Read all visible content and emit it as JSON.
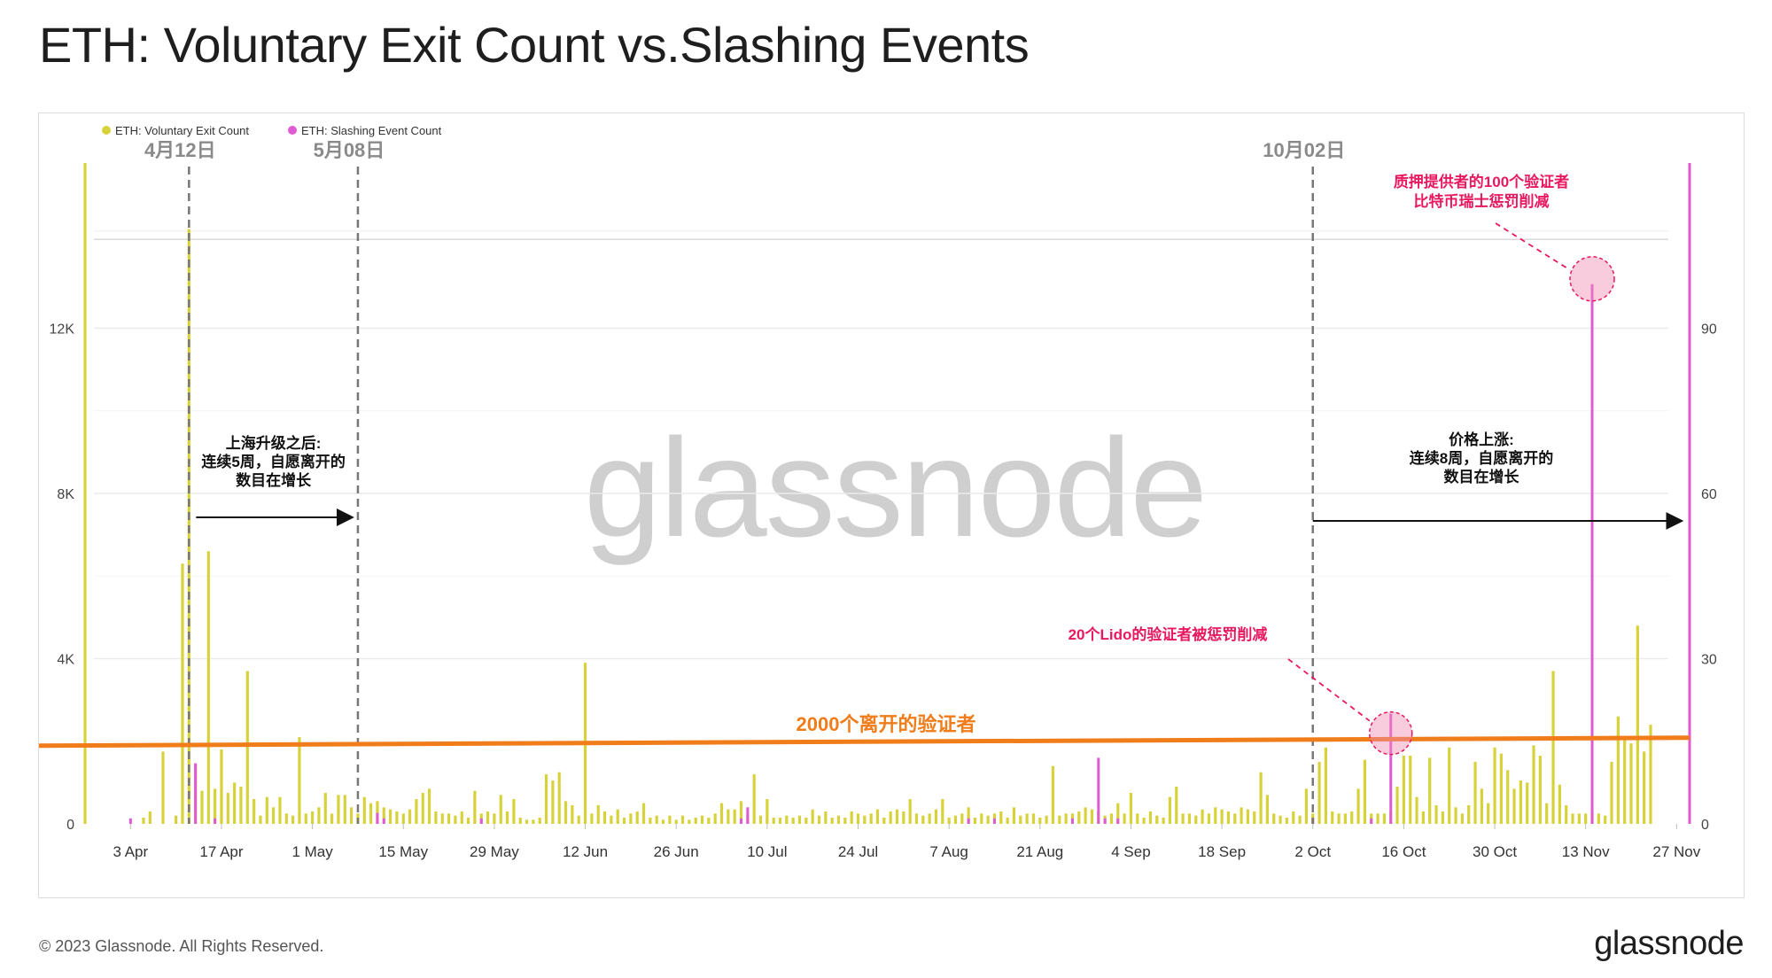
{
  "title": "ETH: Voluntary Exit Count vs.Slashing Events",
  "footer": {
    "copyright": "© 2023 Glassnode. All Rights Reserved.",
    "logo": "glassnode"
  },
  "watermark": "glassnode",
  "colors": {
    "exits": "#d8d23a",
    "slashing": "#e05ad4",
    "threshold": "#f07c1a",
    "annotation_red": "#e8185e",
    "marker": "#777777"
  },
  "chart_data": {
    "type": "bar",
    "legend": [
      {
        "name": "ETH: Voluntary Exit Count",
        "color": "#d8d23a"
      },
      {
        "name": "ETH: Slashing Event Count",
        "color": "#e05ad4"
      }
    ],
    "legend_position": "top-left",
    "x_start": "2023-03-27",
    "x_end": "2023-11-29",
    "x_ticks": [
      "3 Apr",
      "17 Apr",
      "1 May",
      "15 May",
      "29 May",
      "12 Jun",
      "26 Jun",
      "10 Jul",
      "24 Jul",
      "7 Aug",
      "21 Aug",
      "4 Sep",
      "18 Sep",
      "2 Oct",
      "16 Oct",
      "30 Oct",
      "13 Nov",
      "27 Nov"
    ],
    "x_tick_dates": [
      "2023-04-03",
      "2023-04-17",
      "2023-05-01",
      "2023-05-15",
      "2023-05-29",
      "2023-06-12",
      "2023-06-26",
      "2023-07-10",
      "2023-07-24",
      "2023-08-07",
      "2023-08-21",
      "2023-09-04",
      "2023-09-18",
      "2023-10-02",
      "2023-10-16",
      "2023-10-30",
      "2023-11-13",
      "2023-11-27"
    ],
    "y_left": {
      "ticks": [
        "0",
        "4K",
        "8K",
        "12K"
      ],
      "values": [
        0,
        4000,
        8000,
        12000
      ],
      "range": [
        0,
        16000
      ]
    },
    "y_right": {
      "ticks": [
        "0",
        "30",
        "60",
        "90"
      ],
      "values": [
        0,
        30,
        60,
        90
      ],
      "range": [
        0,
        120
      ]
    },
    "grid": true,
    "series": [
      {
        "name": "ETH: Voluntary Exit Count",
        "axis": "left",
        "points": [
          [
            "2023-03-27",
            16000
          ],
          [
            "2023-04-05",
            150
          ],
          [
            "2023-04-06",
            300
          ],
          [
            "2023-04-08",
            1750
          ],
          [
            "2023-04-10",
            200
          ],
          [
            "2023-04-11",
            6300
          ],
          [
            "2023-04-12",
            14400
          ],
          [
            "2023-04-13",
            1450
          ],
          [
            "2023-04-14",
            800
          ],
          [
            "2023-04-15",
            6600
          ],
          [
            "2023-04-16",
            850
          ],
          [
            "2023-04-17",
            1800
          ],
          [
            "2023-04-18",
            750
          ],
          [
            "2023-04-19",
            1000
          ],
          [
            "2023-04-20",
            900
          ],
          [
            "2023-04-21",
            3700
          ],
          [
            "2023-04-22",
            600
          ],
          [
            "2023-04-23",
            200
          ],
          [
            "2023-04-24",
            650
          ],
          [
            "2023-04-25",
            400
          ],
          [
            "2023-04-26",
            650
          ],
          [
            "2023-04-27",
            250
          ],
          [
            "2023-04-28",
            200
          ],
          [
            "2023-04-29",
            2100
          ],
          [
            "2023-04-30",
            250
          ],
          [
            "2023-05-01",
            300
          ],
          [
            "2023-05-02",
            400
          ],
          [
            "2023-05-03",
            750
          ],
          [
            "2023-05-04",
            250
          ],
          [
            "2023-05-05",
            700
          ],
          [
            "2023-05-06",
            700
          ],
          [
            "2023-05-07",
            400
          ],
          [
            "2023-05-08",
            250
          ],
          [
            "2023-05-09",
            650
          ],
          [
            "2023-05-10",
            500
          ],
          [
            "2023-05-11",
            550
          ],
          [
            "2023-05-12",
            400
          ],
          [
            "2023-05-13",
            350
          ],
          [
            "2023-05-14",
            300
          ],
          [
            "2023-05-15",
            250
          ],
          [
            "2023-05-16",
            350
          ],
          [
            "2023-05-17",
            600
          ],
          [
            "2023-05-18",
            750
          ],
          [
            "2023-05-19",
            850
          ],
          [
            "2023-05-20",
            300
          ],
          [
            "2023-05-21",
            250
          ],
          [
            "2023-05-22",
            250
          ],
          [
            "2023-05-23",
            200
          ],
          [
            "2023-05-24",
            300
          ],
          [
            "2023-05-25",
            150
          ],
          [
            "2023-05-26",
            800
          ],
          [
            "2023-05-27",
            250
          ],
          [
            "2023-05-28",
            300
          ],
          [
            "2023-05-29",
            250
          ],
          [
            "2023-05-30",
            700
          ],
          [
            "2023-05-31",
            300
          ],
          [
            "2023-06-01",
            600
          ],
          [
            "2023-06-02",
            150
          ],
          [
            "2023-06-03",
            100
          ],
          [
            "2023-06-04",
            100
          ],
          [
            "2023-06-05",
            150
          ],
          [
            "2023-06-06",
            1200
          ],
          [
            "2023-06-07",
            1050
          ],
          [
            "2023-06-08",
            1250
          ],
          [
            "2023-06-09",
            550
          ],
          [
            "2023-06-10",
            450
          ],
          [
            "2023-06-11",
            200
          ],
          [
            "2023-06-12",
            3900
          ],
          [
            "2023-06-13",
            250
          ],
          [
            "2023-06-14",
            450
          ],
          [
            "2023-06-15",
            300
          ],
          [
            "2023-06-16",
            200
          ],
          [
            "2023-06-17",
            350
          ],
          [
            "2023-06-18",
            150
          ],
          [
            "2023-06-19",
            250
          ],
          [
            "2023-06-20",
            300
          ],
          [
            "2023-06-21",
            500
          ],
          [
            "2023-06-22",
            150
          ],
          [
            "2023-06-23",
            200
          ],
          [
            "2023-06-24",
            100
          ],
          [
            "2023-06-25",
            200
          ],
          [
            "2023-06-26",
            100
          ],
          [
            "2023-06-27",
            200
          ],
          [
            "2023-06-28",
            100
          ],
          [
            "2023-06-29",
            150
          ],
          [
            "2023-06-30",
            200
          ],
          [
            "2023-07-01",
            150
          ],
          [
            "2023-07-02",
            250
          ],
          [
            "2023-07-03",
            500
          ],
          [
            "2023-07-04",
            350
          ],
          [
            "2023-07-05",
            350
          ],
          [
            "2023-07-06",
            550
          ],
          [
            "2023-07-07",
            250
          ],
          [
            "2023-07-08",
            1200
          ],
          [
            "2023-07-09",
            200
          ],
          [
            "2023-07-10",
            600
          ],
          [
            "2023-07-11",
            150
          ],
          [
            "2023-07-12",
            150
          ],
          [
            "2023-07-13",
            200
          ],
          [
            "2023-07-14",
            150
          ],
          [
            "2023-07-15",
            200
          ],
          [
            "2023-07-16",
            150
          ],
          [
            "2023-07-17",
            350
          ],
          [
            "2023-07-18",
            200
          ],
          [
            "2023-07-19",
            300
          ],
          [
            "2023-07-20",
            150
          ],
          [
            "2023-07-21",
            200
          ],
          [
            "2023-07-22",
            150
          ],
          [
            "2023-07-23",
            300
          ],
          [
            "2023-07-24",
            250
          ],
          [
            "2023-07-25",
            200
          ],
          [
            "2023-07-26",
            250
          ],
          [
            "2023-07-27",
            350
          ],
          [
            "2023-07-28",
            150
          ],
          [
            "2023-07-29",
            300
          ],
          [
            "2023-07-30",
            350
          ],
          [
            "2023-07-31",
            300
          ],
          [
            "2023-08-01",
            600
          ],
          [
            "2023-08-02",
            250
          ],
          [
            "2023-08-03",
            200
          ],
          [
            "2023-08-04",
            250
          ],
          [
            "2023-08-05",
            350
          ],
          [
            "2023-08-06",
            600
          ],
          [
            "2023-08-07",
            150
          ],
          [
            "2023-08-08",
            200
          ],
          [
            "2023-08-09",
            250
          ],
          [
            "2023-08-10",
            400
          ],
          [
            "2023-08-11",
            150
          ],
          [
            "2023-08-12",
            250
          ],
          [
            "2023-08-13",
            200
          ],
          [
            "2023-08-14",
            250
          ],
          [
            "2023-08-15",
            300
          ],
          [
            "2023-08-16",
            150
          ],
          [
            "2023-08-17",
            400
          ],
          [
            "2023-08-18",
            200
          ],
          [
            "2023-08-19",
            250
          ],
          [
            "2023-08-20",
            250
          ],
          [
            "2023-08-21",
            150
          ],
          [
            "2023-08-22",
            200
          ],
          [
            "2023-08-23",
            1400
          ],
          [
            "2023-08-24",
            200
          ],
          [
            "2023-08-25",
            250
          ],
          [
            "2023-08-26",
            250
          ],
          [
            "2023-08-27",
            300
          ],
          [
            "2023-08-28",
            400
          ],
          [
            "2023-08-29",
            350
          ],
          [
            "2023-08-30",
            300
          ],
          [
            "2023-08-31",
            200
          ],
          [
            "2023-09-01",
            250
          ],
          [
            "2023-09-02",
            500
          ],
          [
            "2023-09-03",
            250
          ],
          [
            "2023-09-04",
            750
          ],
          [
            "2023-09-05",
            250
          ],
          [
            "2023-09-06",
            150
          ],
          [
            "2023-09-07",
            300
          ],
          [
            "2023-09-08",
            200
          ],
          [
            "2023-09-09",
            150
          ],
          [
            "2023-09-10",
            650
          ],
          [
            "2023-09-11",
            900
          ],
          [
            "2023-09-12",
            250
          ],
          [
            "2023-09-13",
            250
          ],
          [
            "2023-09-14",
            200
          ],
          [
            "2023-09-15",
            350
          ],
          [
            "2023-09-16",
            250
          ],
          [
            "2023-09-17",
            400
          ],
          [
            "2023-09-18",
            350
          ],
          [
            "2023-09-19",
            300
          ],
          [
            "2023-09-20",
            250
          ],
          [
            "2023-09-21",
            400
          ],
          [
            "2023-09-22",
            350
          ],
          [
            "2023-09-23",
            300
          ],
          [
            "2023-09-24",
            1250
          ],
          [
            "2023-09-25",
            700
          ],
          [
            "2023-09-26",
            250
          ],
          [
            "2023-09-27",
            200
          ],
          [
            "2023-09-28",
            150
          ],
          [
            "2023-09-29",
            300
          ],
          [
            "2023-09-30",
            200
          ],
          [
            "2023-10-01",
            850
          ],
          [
            "2023-10-02",
            250
          ],
          [
            "2023-10-03",
            1500
          ],
          [
            "2023-10-04",
            1850
          ],
          [
            "2023-10-05",
            300
          ],
          [
            "2023-10-06",
            250
          ],
          [
            "2023-10-07",
            250
          ],
          [
            "2023-10-08",
            300
          ],
          [
            "2023-10-09",
            850
          ],
          [
            "2023-10-10",
            1550
          ],
          [
            "2023-10-11",
            250
          ],
          [
            "2023-10-12",
            250
          ],
          [
            "2023-10-13",
            250
          ],
          [
            "2023-10-14",
            300
          ],
          [
            "2023-10-15",
            900
          ],
          [
            "2023-10-16",
            1650
          ],
          [
            "2023-10-17",
            1650
          ],
          [
            "2023-10-18",
            650
          ],
          [
            "2023-10-19",
            300
          ],
          [
            "2023-10-20",
            1600
          ],
          [
            "2023-10-21",
            450
          ],
          [
            "2023-10-22",
            300
          ],
          [
            "2023-10-23",
            1850
          ],
          [
            "2023-10-24",
            400
          ],
          [
            "2023-10-25",
            250
          ],
          [
            "2023-10-26",
            450
          ],
          [
            "2023-10-27",
            1500
          ],
          [
            "2023-10-28",
            850
          ],
          [
            "2023-10-29",
            500
          ],
          [
            "2023-10-30",
            1850
          ],
          [
            "2023-10-31",
            1700
          ],
          [
            "2023-11-01",
            1300
          ],
          [
            "2023-11-02",
            850
          ],
          [
            "2023-11-03",
            1050
          ],
          [
            "2023-11-04",
            1000
          ],
          [
            "2023-11-05",
            1900
          ],
          [
            "2023-11-06",
            1650
          ],
          [
            "2023-11-07",
            500
          ],
          [
            "2023-11-08",
            3700
          ],
          [
            "2023-11-09",
            950
          ],
          [
            "2023-11-10",
            450
          ],
          [
            "2023-11-11",
            250
          ],
          [
            "2023-11-12",
            250
          ],
          [
            "2023-11-13",
            250
          ],
          [
            "2023-11-14",
            300
          ],
          [
            "2023-11-15",
            250
          ],
          [
            "2023-11-16",
            200
          ],
          [
            "2023-11-17",
            1500
          ],
          [
            "2023-11-18",
            2600
          ],
          [
            "2023-11-19",
            2050
          ],
          [
            "2023-11-20",
            1950
          ],
          [
            "2023-11-21",
            4800
          ],
          [
            "2023-11-22",
            1750
          ],
          [
            "2023-11-23",
            2400
          ]
        ]
      },
      {
        "name": "ETH: Slashing Event Count",
        "axis": "right",
        "points": [
          [
            "2023-04-03",
            1
          ],
          [
            "2023-04-13",
            11
          ],
          [
            "2023-04-16",
            1
          ],
          [
            "2023-05-11",
            2
          ],
          [
            "2023-05-12",
            1
          ],
          [
            "2023-05-27",
            1
          ],
          [
            "2023-07-06",
            1
          ],
          [
            "2023-07-07",
            3
          ],
          [
            "2023-08-10",
            1
          ],
          [
            "2023-08-14",
            1
          ],
          [
            "2023-08-26",
            1
          ],
          [
            "2023-08-30",
            12
          ],
          [
            "2023-08-31",
            1
          ],
          [
            "2023-09-02",
            1
          ],
          [
            "2023-10-02",
            1
          ],
          [
            "2023-10-11",
            1
          ],
          [
            "2023-10-14",
            20
          ],
          [
            "2023-11-14",
            98
          ],
          [
            "2023-11-29",
            120
          ]
        ]
      }
    ],
    "markers": [
      {
        "date": "2023-04-12",
        "label": "4月12日"
      },
      {
        "date": "2023-05-08",
        "label": "5月08日"
      },
      {
        "date": "2023-10-02",
        "label": "10月02日"
      }
    ],
    "threshold": {
      "value": 2000,
      "label": "2000个离开的验证者"
    },
    "annotations": [
      {
        "text": [
          "上海升级之后:",
          "连续5周，自愿离开的",
          "数目在增长"
        ],
        "from": "2023-04-12",
        "to": "2023-05-08"
      },
      {
        "text": [
          "价格上涨:",
          "连续8周，自愿离开的",
          "数目在增长"
        ],
        "from": "2023-10-02",
        "to": "2023-11-27"
      },
      {
        "text": [
          "20个Lido的验证者被惩罚削减"
        ],
        "date": "2023-10-14",
        "value": 20
      },
      {
        "text": [
          "质押提供者的100个验证者",
          "比特币瑞士惩罚削减"
        ],
        "date": "2023-11-14",
        "value": 98
      }
    ]
  }
}
